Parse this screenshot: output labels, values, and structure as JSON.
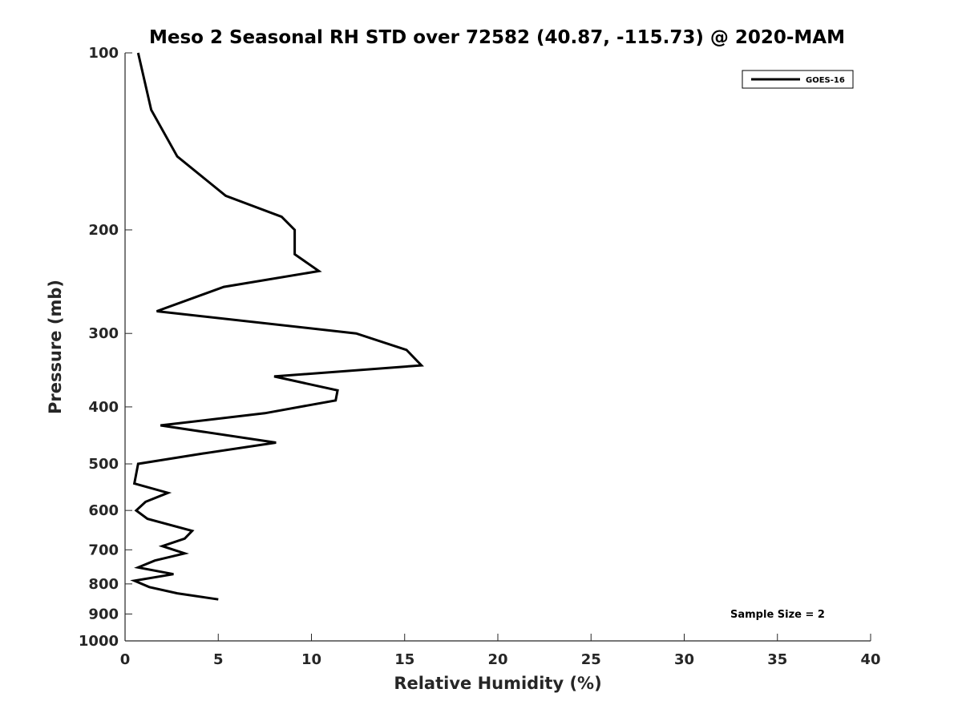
{
  "chart_data": {
    "type": "line",
    "title": "Meso 2 Seasonal RH STD over 72582 (40.87, -115.73) @ 2020-MAM",
    "xlabel": "Relative Humidity (%)",
    "ylabel": "Pressure (mb)",
    "xlim": [
      0,
      40
    ],
    "ylim": [
      100,
      1000
    ],
    "yscale": "log",
    "y_reversed": true,
    "x_ticks": [
      0,
      5,
      10,
      15,
      20,
      25,
      30,
      35,
      40
    ],
    "y_ticks": [
      100,
      200,
      300,
      400,
      500,
      600,
      700,
      800,
      900,
      1000
    ],
    "grid": false,
    "legend": {
      "position": "top-right",
      "entries": [
        "GOES-16"
      ]
    },
    "annotation": "Sample Size = 2",
    "series": [
      {
        "name": "GOES-16",
        "color": "#000000",
        "x": [
          0.7,
          1.4,
          2.8,
          5.4,
          8.4,
          9.1,
          9.1,
          9.1,
          10.4,
          5.3,
          1.7,
          12.4,
          15.1,
          15.9,
          8.0,
          11.4,
          11.3,
          7.5,
          1.9,
          8.1,
          4.2,
          0.7,
          0.5,
          2.3,
          1.1,
          0.6,
          1.2,
          3.6,
          3.2,
          2.0,
          3.2,
          1.6,
          0.7,
          2.6,
          0.5,
          1.3,
          2.8,
          5.0
        ],
        "y": [
          100,
          125,
          150,
          175,
          190,
          200,
          205,
          220,
          235,
          250,
          275,
          300,
          320,
          340,
          355,
          375,
          390,
          410,
          430,
          460,
          480,
          500,
          540,
          560,
          580,
          600,
          620,
          650,
          670,
          690,
          710,
          730,
          750,
          770,
          790,
          810,
          830,
          850
        ]
      }
    ]
  }
}
